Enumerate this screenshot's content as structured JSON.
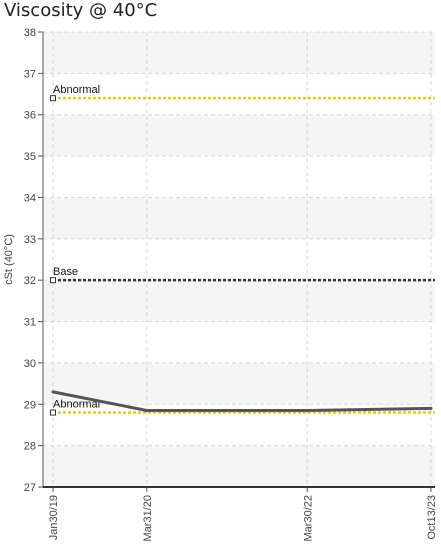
{
  "chart_data": {
    "type": "line",
    "title": "Viscosity @ 40°C",
    "ylabel": "cSt (40°C)",
    "xlabel": "",
    "ylim": [
      27,
      38
    ],
    "yticks": [
      27,
      28,
      29,
      30,
      31,
      32,
      33,
      34,
      35,
      36,
      37,
      38
    ],
    "x": [
      "Jan30/19",
      "Mar31/20",
      "Mar30/22",
      "Oct13/23"
    ],
    "x_days": [
      0,
      426,
      1155,
      1717
    ],
    "series": [
      {
        "values": [
          29.3,
          28.85,
          28.85,
          28.9
        ],
        "color": "#555555"
      }
    ],
    "reference_lines": [
      {
        "label": "Abnormal",
        "value": 36.4,
        "color": "#f0c419"
      },
      {
        "label": "Base",
        "value": 32.0,
        "color": "#333333"
      },
      {
        "label": "Abnormal",
        "value": 28.8,
        "color": "#f0c419"
      }
    ],
    "grid": true,
    "band_color": "#f5f5f5"
  }
}
